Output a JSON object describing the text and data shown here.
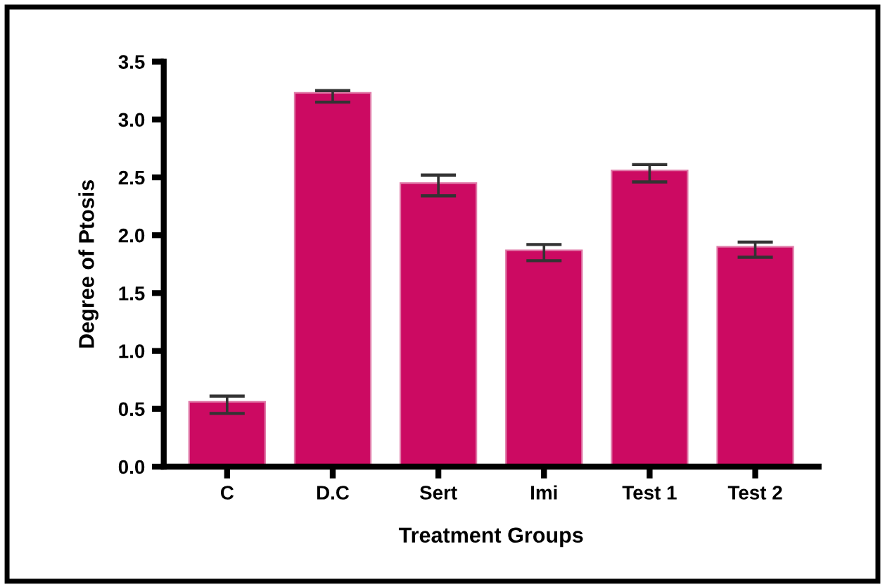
{
  "chart_data": {
    "type": "bar",
    "xlabel": "Treatment Groups",
    "ylabel": "Degree of Ptosis",
    "categories": [
      "C",
      "D.C",
      "Sert",
      "Imi",
      "Test 1",
      "Test 2"
    ],
    "values": [
      0.56,
      3.23,
      2.45,
      1.87,
      2.56,
      1.9
    ],
    "errors": [
      [
        0.46,
        0.61
      ],
      [
        3.15,
        3.25
      ],
      [
        2.34,
        2.52
      ],
      [
        1.78,
        1.92
      ],
      [
        2.46,
        2.61
      ],
      [
        1.81,
        1.94
      ]
    ],
    "color": "#cc0a62",
    "ylim": [
      0,
      3.5
    ],
    "yticks": [
      {
        "value": 0,
        "label": "0.0"
      },
      {
        "value": 0.5,
        "label": "0.5"
      },
      {
        "value": 1,
        "label": "1.0"
      },
      {
        "value": 1.5,
        "label": "1.5"
      },
      {
        "value": 2,
        "label": "2.0"
      },
      {
        "value": 2.5,
        "label": "2.5"
      },
      {
        "value": 3,
        "label": "3.0"
      },
      {
        "value": 3.5,
        "label": "3.5"
      }
    ],
    "grid": false
  }
}
